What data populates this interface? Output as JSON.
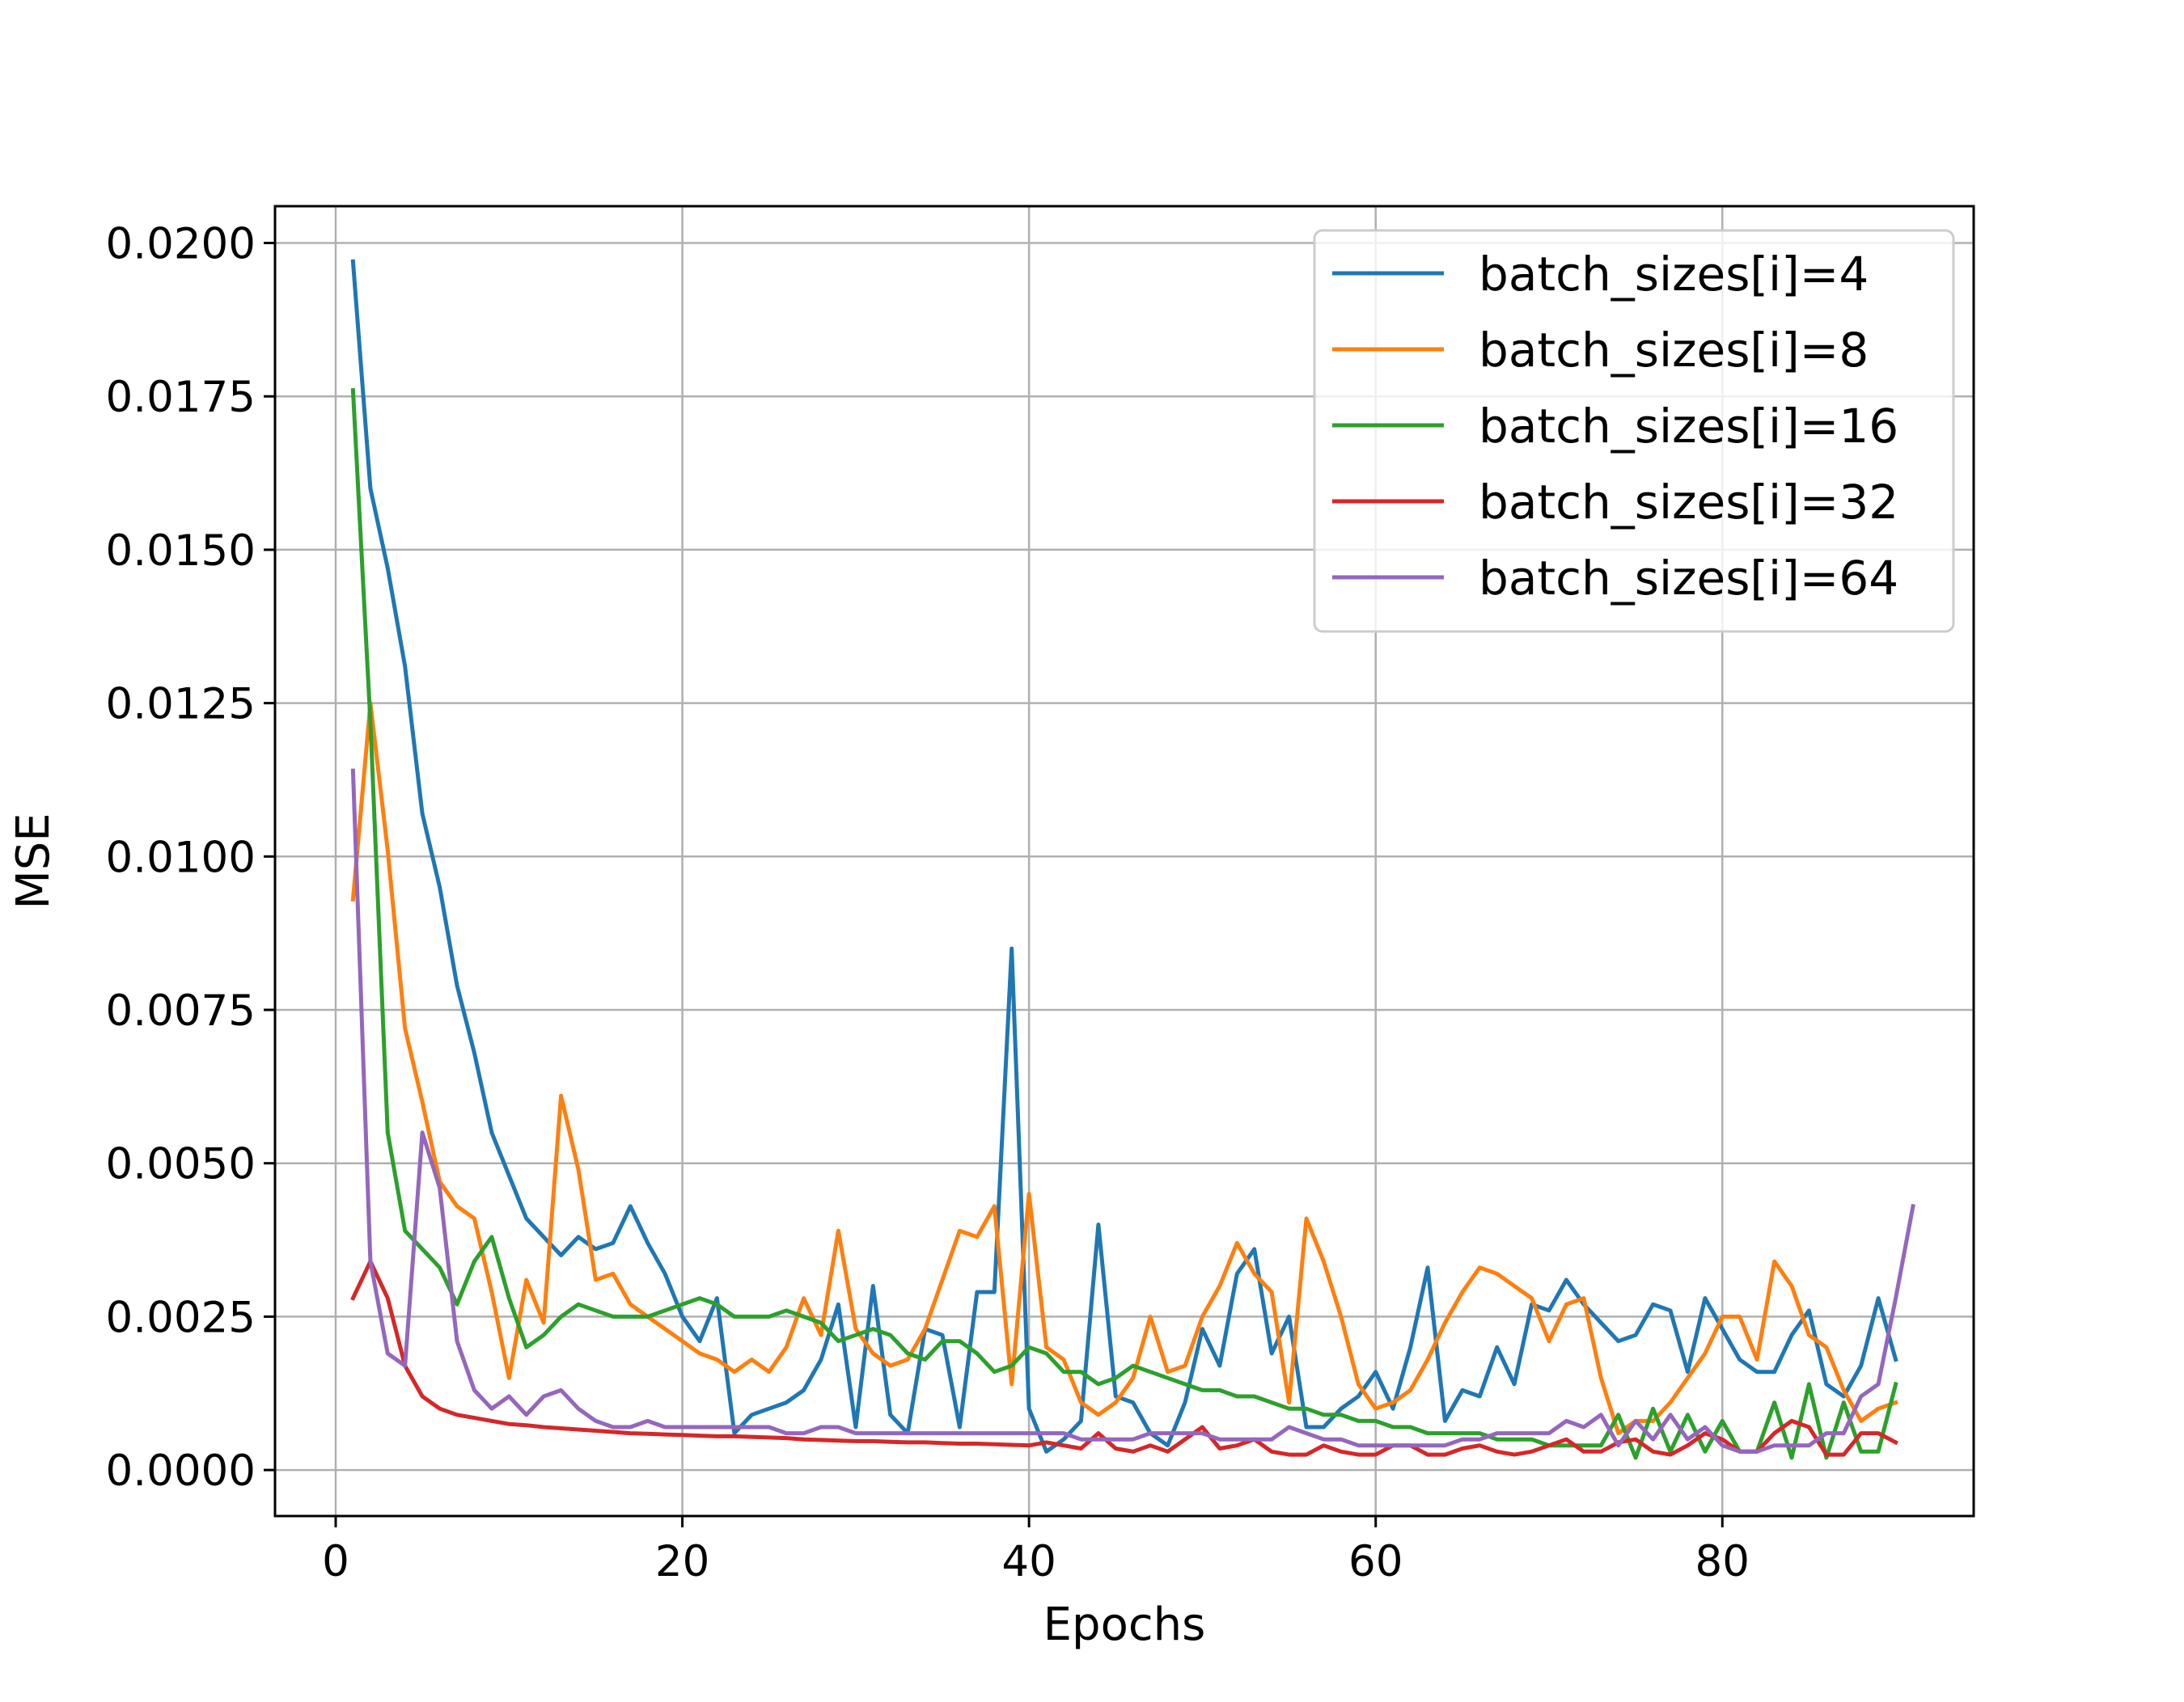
{
  "chart_data": {
    "type": "line",
    "title": "",
    "xlabel": "Epochs",
    "ylabel": "MSE",
    "xlim": [
      -3.5,
      94.5
    ],
    "ylim": [
      -0.00075,
      0.0206
    ],
    "x_ticks": [
      0,
      20,
      40,
      60,
      80
    ],
    "y_ticks": [
      0.0,
      0.0025,
      0.005,
      0.0075,
      0.01,
      0.0125,
      0.015,
      0.0175,
      0.02
    ],
    "x_tick_labels": [
      "0",
      "20",
      "40",
      "60",
      "80"
    ],
    "y_tick_labels": [
      "0.0000",
      "0.0025",
      "0.0050",
      "0.0075",
      "0.0100",
      "0.0125",
      "0.0150",
      "0.0175",
      "0.0200"
    ],
    "grid": true,
    "legend_position": "upper right",
    "series": [
      {
        "name": "batch_sizes[i]=4",
        "color": "#1f77b4",
        "x_start": 1,
        "values": [
          0.0197,
          0.016,
          0.0147,
          0.0131,
          0.0107,
          0.0095,
          0.0079,
          0.0068,
          0.0055,
          0.0048,
          0.0041,
          0.0038,
          0.0035,
          0.0038,
          0.0036,
          0.0037,
          0.0043,
          0.0037,
          0.0032,
          0.0025,
          0.0021,
          0.0028,
          0.0006,
          0.0009,
          0.001,
          0.0011,
          0.0013,
          0.0018,
          0.0027,
          0.0007,
          0.003,
          0.0009,
          0.0006,
          0.0023,
          0.0022,
          0.0007,
          0.0029,
          0.0029,
          0.0085,
          0.001,
          0.0003,
          0.0005,
          0.0008,
          0.004,
          0.0012,
          0.0011,
          0.0006,
          0.0004,
          0.0011,
          0.0023,
          0.0017,
          0.0032,
          0.0036,
          0.0019,
          0.0025,
          0.0007,
          0.0007,
          0.001,
          0.0012,
          0.0016,
          0.001,
          0.002,
          0.0033,
          0.0008,
          0.0013,
          0.0012,
          0.002,
          0.0014,
          0.0027,
          0.0026,
          0.0031,
          0.0027,
          0.0024,
          0.0021,
          0.0022,
          0.0027,
          0.0026,
          0.0016,
          0.0028,
          0.0023,
          0.0018,
          0.0016,
          0.0016,
          0.0022,
          0.0026,
          0.0014,
          0.0012,
          0.0017,
          0.0028,
          0.0018
        ]
      },
      {
        "name": "batch_sizes[i]=8",
        "color": "#ff7f0e",
        "x_start": 1,
        "values": [
          0.0093,
          0.0125,
          0.0101,
          0.0072,
          0.006,
          0.0047,
          0.0043,
          0.0041,
          0.0029,
          0.0015,
          0.0031,
          0.0024,
          0.0061,
          0.0049,
          0.0031,
          0.0032,
          0.0027,
          0.0025,
          0.0023,
          0.0021,
          0.0019,
          0.0018,
          0.0016,
          0.0018,
          0.0016,
          0.002,
          0.0028,
          0.0022,
          0.0039,
          0.0023,
          0.0019,
          0.0017,
          0.0018,
          0.0023,
          0.0031,
          0.0039,
          0.0038,
          0.0043,
          0.0014,
          0.0045,
          0.002,
          0.0018,
          0.0011,
          0.0009,
          0.0011,
          0.0015,
          0.0025,
          0.0016,
          0.0017,
          0.0025,
          0.003,
          0.0037,
          0.0032,
          0.0029,
          0.0011,
          0.0041,
          0.0034,
          0.0025,
          0.0014,
          0.001,
          0.0011,
          0.0013,
          0.0018,
          0.0024,
          0.0029,
          0.0033,
          0.0032,
          0.003,
          0.0028,
          0.0021,
          0.0027,
          0.0028,
          0.0015,
          0.0006,
          0.0008,
          0.0008,
          0.0011,
          0.0015,
          0.0019,
          0.0025,
          0.0025,
          0.0018,
          0.0034,
          0.003,
          0.0022,
          0.002,
          0.0013,
          0.0008,
          0.001,
          0.0011
        ]
      },
      {
        "name": "batch_sizes[i]=16",
        "color": "#2ca02c",
        "x_start": 1,
        "values": [
          0.0176,
          0.0122,
          0.0055,
          0.0039,
          0.0036,
          0.0033,
          0.0027,
          0.0034,
          0.0038,
          0.0028,
          0.002,
          0.0022,
          0.0025,
          0.0027,
          0.0026,
          0.0025,
          0.0025,
          0.0025,
          0.0026,
          0.0027,
          0.0028,
          0.0027,
          0.0025,
          0.0025,
          0.0025,
          0.0026,
          0.0025,
          0.0024,
          0.0021,
          0.0022,
          0.0023,
          0.0022,
          0.0019,
          0.0018,
          0.0021,
          0.0021,
          0.0019,
          0.0016,
          0.0017,
          0.002,
          0.0019,
          0.0016,
          0.0016,
          0.0014,
          0.0015,
          0.0017,
          0.0016,
          0.0015,
          0.0014,
          0.0013,
          0.0013,
          0.0012,
          0.0012,
          0.0011,
          0.001,
          0.001,
          0.0009,
          0.0009,
          0.0008,
          0.0008,
          0.0007,
          0.0007,
          0.0006,
          0.0006,
          0.0006,
          0.0006,
          0.0005,
          0.0005,
          0.0005,
          0.0004,
          0.0004,
          0.0004,
          0.0004,
          0.0009,
          0.0002,
          0.001,
          0.0003,
          0.0009,
          0.0003,
          0.0008,
          0.0003,
          0.0003,
          0.0011,
          0.0002,
          0.0014,
          0.0002,
          0.0011,
          0.0003,
          0.0003,
          0.0014
        ]
      },
      {
        "name": "batch_sizes[i]=32",
        "color": "#d62728",
        "x_start": 1,
        "values": [
          0.0028,
          0.0034,
          0.0028,
          0.0017,
          0.0012,
          0.001,
          0.0009,
          0.00085,
          0.0008,
          0.00075,
          0.00073,
          0.0007,
          0.00068,
          0.00066,
          0.00064,
          0.00062,
          0.0006,
          0.00059,
          0.00058,
          0.00057,
          0.00056,
          0.00055,
          0.00055,
          0.00054,
          0.00053,
          0.00052,
          0.0005,
          0.00049,
          0.00048,
          0.00047,
          0.00047,
          0.00046,
          0.00045,
          0.00045,
          0.00044,
          0.00043,
          0.00043,
          0.00042,
          0.00041,
          0.0004,
          0.00045,
          0.0004,
          0.00035,
          0.0006,
          0.00035,
          0.0003,
          0.0004,
          0.0003,
          0.0005,
          0.0007,
          0.00035,
          0.0004,
          0.0005,
          0.0003,
          0.00025,
          0.00025,
          0.0004,
          0.0003,
          0.00025,
          0.00025,
          0.0004,
          0.0004,
          0.00025,
          0.00025,
          0.00035,
          0.0004,
          0.0003,
          0.00025,
          0.0003,
          0.0004,
          0.0005,
          0.0003,
          0.0003,
          0.00045,
          0.0005,
          0.0003,
          0.00025,
          0.0004,
          0.0006,
          0.0005,
          0.0003,
          0.0003,
          0.0006,
          0.0008,
          0.0007,
          0.00025,
          0.00025,
          0.0006,
          0.0006,
          0.00045
        ]
      },
      {
        "name": "batch_sizes[i]=64",
        "color": "#9467bd",
        "x_start": 1,
        "values": [
          0.0114,
          0.0034,
          0.0019,
          0.0017,
          0.0055,
          0.0046,
          0.0021,
          0.0013,
          0.001,
          0.0012,
          0.0009,
          0.0012,
          0.0013,
          0.001,
          0.0008,
          0.0007,
          0.0007,
          0.0008,
          0.0007,
          0.0007,
          0.0007,
          0.0007,
          0.0007,
          0.0007,
          0.0007,
          0.0006,
          0.0006,
          0.0007,
          0.0007,
          0.0006,
          0.0006,
          0.0006,
          0.0006,
          0.0006,
          0.0006,
          0.0006,
          0.0006,
          0.0006,
          0.0006,
          0.0006,
          0.0006,
          0.0006,
          0.0005,
          0.0005,
          0.0005,
          0.0005,
          0.0006,
          0.0006,
          0.0006,
          0.0006,
          0.0005,
          0.0005,
          0.0005,
          0.0005,
          0.0007,
          0.0006,
          0.0005,
          0.0005,
          0.0004,
          0.0004,
          0.0004,
          0.0004,
          0.0004,
          0.0004,
          0.0005,
          0.0005,
          0.0006,
          0.0006,
          0.0006,
          0.0006,
          0.0008,
          0.0007,
          0.0009,
          0.0004,
          0.0008,
          0.0005,
          0.0009,
          0.0005,
          0.0007,
          0.0004,
          0.0003,
          0.0003,
          0.0004,
          0.0004,
          0.0004,
          0.0006,
          0.0006,
          0.0012,
          0.0014,
          0.0028,
          0.0043
        ]
      }
    ]
  }
}
